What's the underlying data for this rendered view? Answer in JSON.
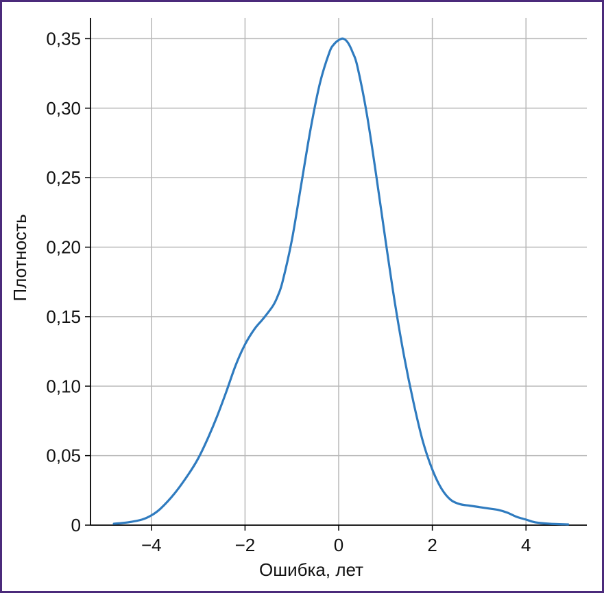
{
  "chart_data": {
    "type": "line",
    "title": "",
    "xlabel": "Ошибка, лет",
    "ylabel": "Плотность",
    "xlim": [
      -5.3,
      5.3
    ],
    "ylim": [
      0,
      0.365
    ],
    "grid": true,
    "colors": {
      "line": "#2f7bbf",
      "grid": "#b8b8b8",
      "axis": "#000000",
      "frame": "#4b2a7b"
    },
    "x_ticks": [
      {
        "value": -4,
        "label": "−4"
      },
      {
        "value": -2,
        "label": "−2"
      },
      {
        "value": 0,
        "label": "0"
      },
      {
        "value": 2,
        "label": "2"
      },
      {
        "value": 4,
        "label": "4"
      }
    ],
    "y_ticks": [
      {
        "value": 0,
        "label": "0"
      },
      {
        "value": 0.05,
        "label": "0,05"
      },
      {
        "value": 0.1,
        "label": "0,10"
      },
      {
        "value": 0.15,
        "label": "0,15"
      },
      {
        "value": 0.2,
        "label": "0,20"
      },
      {
        "value": 0.25,
        "label": "0,25"
      },
      {
        "value": 0.3,
        "label": "0,30"
      },
      {
        "value": 0.35,
        "label": "0,35"
      }
    ],
    "series": [
      {
        "x": [
          -4.8,
          -4.5,
          -4.2,
          -4.0,
          -3.8,
          -3.5,
          -3.2,
          -3.0,
          -2.8,
          -2.6,
          -2.4,
          -2.2,
          -2.0,
          -1.8,
          -1.6,
          -1.4,
          -1.3,
          -1.2,
          -1.0,
          -0.8,
          -0.6,
          -0.4,
          -0.2,
          -0.1,
          0.0,
          0.1,
          0.2,
          0.3,
          0.4,
          0.6,
          0.8,
          1.0,
          1.2,
          1.4,
          1.6,
          1.8,
          2.0,
          2.2,
          2.4,
          2.6,
          2.8,
          3.0,
          3.2,
          3.4,
          3.6,
          3.8,
          4.0,
          4.2,
          4.5,
          4.9
        ],
        "y": [
          0.001,
          0.002,
          0.004,
          0.007,
          0.012,
          0.023,
          0.037,
          0.048,
          0.062,
          0.078,
          0.096,
          0.115,
          0.13,
          0.141,
          0.149,
          0.158,
          0.165,
          0.175,
          0.205,
          0.245,
          0.285,
          0.318,
          0.34,
          0.346,
          0.349,
          0.35,
          0.347,
          0.34,
          0.33,
          0.296,
          0.252,
          0.205,
          0.16,
          0.121,
          0.088,
          0.06,
          0.04,
          0.026,
          0.018,
          0.015,
          0.014,
          0.013,
          0.012,
          0.011,
          0.009,
          0.006,
          0.004,
          0.002,
          0.001,
          0.0005
        ]
      }
    ]
  }
}
